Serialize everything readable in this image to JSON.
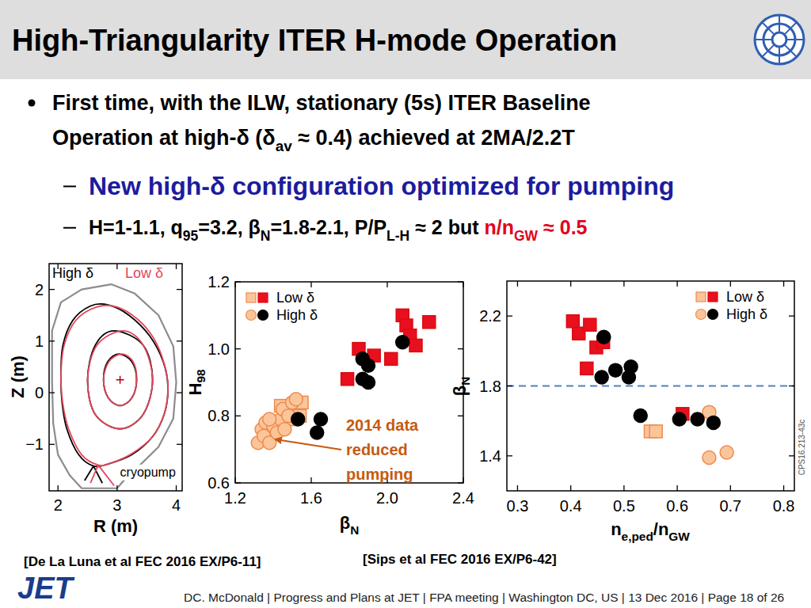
{
  "slide": {
    "title": "High-Triangularity ITER H-mode Operation",
    "bullet": [
      [
        {
          "text": "First time, with the ILW, stationary (5s) ITER Baseline"
        }
      ],
      [
        {
          "text": "Operation at high-δ (δ"
        },
        {
          "text": "av",
          "sub": true
        },
        {
          "text": " ≈ 0.4) achieved at 2MA/2.2T"
        }
      ]
    ],
    "sub_bullets": [
      {
        "color": "#1c1c9e",
        "runs": [
          {
            "text": "New high-δ configuration optimized for pumping"
          }
        ]
      },
      {
        "color": "#000000",
        "runs": [
          {
            "text": "H=1-1.1, q"
          },
          {
            "text": "95",
            "sub": true
          },
          {
            "text": "=3.2, β"
          },
          {
            "text": "N",
            "sub": true
          },
          {
            "text": "=1.8-2.1, P/P"
          },
          {
            "text": "L-H",
            "sub": true
          },
          {
            "text": " ≈ 2 but "
          },
          {
            "text": "n/n",
            "color": "#e3001b"
          },
          {
            "text": "GW",
            "sub": true,
            "color": "#e3001b"
          },
          {
            "text": " ≈ 0.5",
            "color": "#e3001b"
          }
        ]
      }
    ],
    "references": [
      "[De La Luna et al FEC 2016 EX/P6-11]",
      "[Sips et al FEC 2016 EX/P6-42]"
    ],
    "logo": "JET",
    "footer": "DC. McDonald | Progress and Plans at JET | FPA meeting  | Washington DC, US | 13 Dec 2016 | Page 18 of 26"
  },
  "chart_data": [
    {
      "type": "line",
      "x_label": "R (m)",
      "y_label": "Z (m)",
      "xlim": [
        1.85,
        4.1
      ],
      "ylim": [
        -1.9,
        2.5
      ],
      "xticks": [
        2,
        3,
        4
      ],
      "yticks": [
        {
          "value": -1,
          "label": "−1"
        },
        0,
        1,
        2
      ],
      "grid": false,
      "legend": "upper left",
      "series": [
        {
          "name": "High δ",
          "color": "#000000",
          "x": [
            2.05,
            2.08,
            2.25,
            2.55,
            2.85,
            3.2,
            3.55,
            3.78,
            3.86,
            3.8,
            3.6,
            3.25,
            2.85,
            2.6,
            2.35,
            2.15,
            2.07,
            2.05,
            null,
            2.45,
            2.6,
            2.75,
            null,
            3.6,
            3.44,
            2.95,
            2.63,
            2.5,
            2.63,
            3.05,
            3.44,
            3.6,
            null,
            3.33,
            3.25,
            3.03,
            2.84,
            2.77,
            2.85,
            3.05,
            3.25,
            3.33
          ],
          "values": [
            0.3,
            0.9,
            1.4,
            1.68,
            1.7,
            1.5,
            1.1,
            0.6,
            0.1,
            -0.4,
            -0.85,
            -1.2,
            -1.38,
            -1.42,
            -1.2,
            -0.7,
            -0.2,
            0.3,
            null,
            -1.7,
            -1.42,
            -1.75,
            null,
            0.25,
            0.92,
            1.2,
            0.92,
            0.25,
            -0.42,
            -0.7,
            -0.42,
            0.25,
            null,
            0.25,
            0.6,
            0.75,
            0.6,
            0.25,
            -0.1,
            -0.25,
            -0.1,
            0.25
          ]
        },
        {
          "name": "Low δ",
          "color": "#e2475a",
          "x": [
            2.05,
            2.1,
            2.3,
            2.65,
            3.0,
            3.35,
            3.62,
            3.8,
            3.86,
            3.8,
            3.6,
            3.25,
            2.9,
            2.68,
            2.4,
            2.18,
            2.08,
            2.05,
            null,
            2.55,
            2.68,
            2.95,
            null,
            3.6,
            3.44,
            3.1,
            2.66,
            2.5,
            2.63,
            3.05,
            3.44,
            3.6,
            null,
            3.33,
            3.27,
            3.08,
            2.86,
            2.77,
            2.85,
            3.05,
            3.25,
            3.33
          ],
          "values": [
            0.3,
            0.9,
            1.4,
            1.66,
            1.66,
            1.42,
            1.05,
            0.55,
            0.1,
            -0.4,
            -0.85,
            -1.18,
            -1.36,
            -1.4,
            -1.2,
            -0.7,
            -0.2,
            0.3,
            null,
            -1.75,
            -1.4,
            -1.8,
            null,
            0.25,
            0.92,
            1.2,
            0.92,
            0.25,
            -0.42,
            -0.7,
            -0.42,
            0.25,
            null,
            0.25,
            0.6,
            0.75,
            0.6,
            0.25,
            -0.1,
            -0.25,
            -0.1,
            0.25
          ]
        }
      ],
      "wall": {
        "color": "#8c8c8c",
        "x": [
          1.9,
          1.9,
          2.05,
          2.4,
          2.9,
          3.3,
          3.7,
          3.95,
          4.0,
          3.95,
          3.7,
          3.3,
          3.15,
          3.0,
          2.4,
          2.2,
          2.0,
          1.92,
          1.9
        ],
        "values": [
          0.2,
          1.2,
          1.75,
          2.0,
          2.1,
          1.92,
          1.5,
          0.9,
          0.2,
          -0.5,
          -1.05,
          -1.5,
          -1.65,
          -1.85,
          -1.85,
          -1.6,
          -1.2,
          -0.6,
          0.2
        ]
      },
      "magnetic_axis": {
        "x": 3.05,
        "y": 0.25,
        "color": "#b0001a"
      },
      "annotations": [
        {
          "text": "cryopump",
          "x": 3.05,
          "y": -1.62
        }
      ]
    },
    {
      "type": "scatter",
      "x_label": [
        {
          "text": "β"
        },
        {
          "text": "N",
          "sub": true
        }
      ],
      "y_label": [
        {
          "text": "H"
        },
        {
          "text": "98",
          "sub": true
        }
      ],
      "xlim": [
        1.2,
        2.4
      ],
      "ylim": [
        0.6,
        1.2
      ],
      "xticks": [
        1.2,
        1.6,
        {
          "value": 2,
          "label": "2.0"
        },
        2.4
      ],
      "yticks": [
        0.6,
        0.8,
        {
          "value": 1,
          "label": "1.0"
        },
        1.2
      ],
      "grid": false,
      "legend": "upper left",
      "series": [
        {
          "name": "Low δ",
          "color": "#fbc59a",
          "marker": "square",
          "x": [
            1.44,
            1.48,
            1.5,
            1.54,
            1.55
          ],
          "values": [
            0.83,
            0.82,
            0.79,
            0.8,
            0.84
          ]
        },
        {
          "name": "Low δ",
          "color": "#e8101e",
          "marker": "square",
          "x": [
            1.79,
            1.85,
            1.93,
            2.02,
            2.08,
            2.1,
            2.12,
            2.15,
            2.22
          ],
          "values": [
            0.91,
            1.0,
            0.98,
            0.97,
            1.1,
            1.07,
            1.04,
            1.01,
            1.08
          ]
        },
        {
          "name": "High δ",
          "color": "#fbc59a",
          "marker": "circle",
          "x": [
            1.32,
            1.34,
            1.35,
            1.36,
            1.38,
            1.4,
            1.42,
            1.44,
            1.45,
            1.46,
            1.48,
            1.5,
            1.52,
            1.38
          ],
          "values": [
            0.72,
            0.76,
            0.74,
            0.78,
            0.72,
            0.77,
            0.75,
            0.79,
            0.82,
            0.76,
            0.8,
            0.84,
            0.85,
            0.79
          ]
        },
        {
          "name": "High δ",
          "color": "#000000",
          "marker": "circle",
          "x": [
            1.53,
            1.63,
            1.65,
            1.87,
            1.9,
            1.87,
            1.9,
            2.08
          ],
          "values": [
            0.79,
            0.75,
            0.79,
            0.97,
            0.95,
            0.91,
            0.9,
            1.02
          ]
        }
      ],
      "annotations": [
        {
          "text": [
            "2014 data",
            "reduced",
            "pumping"
          ],
          "x": 1.37,
          "y": 0.73,
          "color": "#c55a11"
        }
      ]
    },
    {
      "type": "scatter",
      "x_label": [
        {
          "text": "n"
        },
        {
          "text": "e,ped",
          "sub": true
        },
        {
          "text": "/n"
        },
        {
          "text": "GW",
          "sub": true
        }
      ],
      "y_label": [
        {
          "text": "β"
        },
        {
          "text": "N",
          "sub": true
        }
      ],
      "xlim": [
        0.28,
        0.82
      ],
      "ylim": [
        1.2,
        2.4
      ],
      "xticks": [
        0.3,
        0.4,
        0.5,
        0.6,
        0.7,
        0.8
      ],
      "yticks": [
        1.4,
        1.8,
        2.2
      ],
      "grid": false,
      "legend": "upper right",
      "series": [
        {
          "type": "line",
          "line_style": "dashed",
          "color": "#4f81bd",
          "x": [
            0.28,
            0.82
          ],
          "values": [
            1.8,
            1.8
          ]
        },
        {
          "name": "Low δ",
          "color": "#fbc59a",
          "marker": "square",
          "x": [
            0.55,
            0.56
          ],
          "values": [
            1.54,
            1.54
          ]
        },
        {
          "name": "Low δ",
          "color": "#e8101e",
          "marker": "square",
          "x": [
            0.404,
            0.415,
            0.436,
            0.448,
            0.461,
            0.43,
            0.61
          ],
          "values": [
            2.17,
            2.1,
            2.15,
            2.02,
            2.05,
            1.9,
            1.64
          ]
        },
        {
          "name": "High δ",
          "color": "#fbc59a",
          "marker": "circle",
          "x": [
            0.66,
            0.66,
            0.693
          ],
          "values": [
            1.65,
            1.39,
            1.42
          ]
        },
        {
          "name": "High δ",
          "color": "#000000",
          "marker": "circle",
          "x": [
            0.462,
            0.458,
            0.484,
            0.509,
            0.513,
            0.531,
            0.604,
            0.638,
            0.668
          ],
          "values": [
            2.08,
            1.85,
            1.89,
            1.85,
            1.91,
            1.63,
            1.61,
            1.61,
            1.59
          ]
        }
      ],
      "annotations": [
        {
          "text": "CPS16.213-43c"
        }
      ]
    }
  ]
}
